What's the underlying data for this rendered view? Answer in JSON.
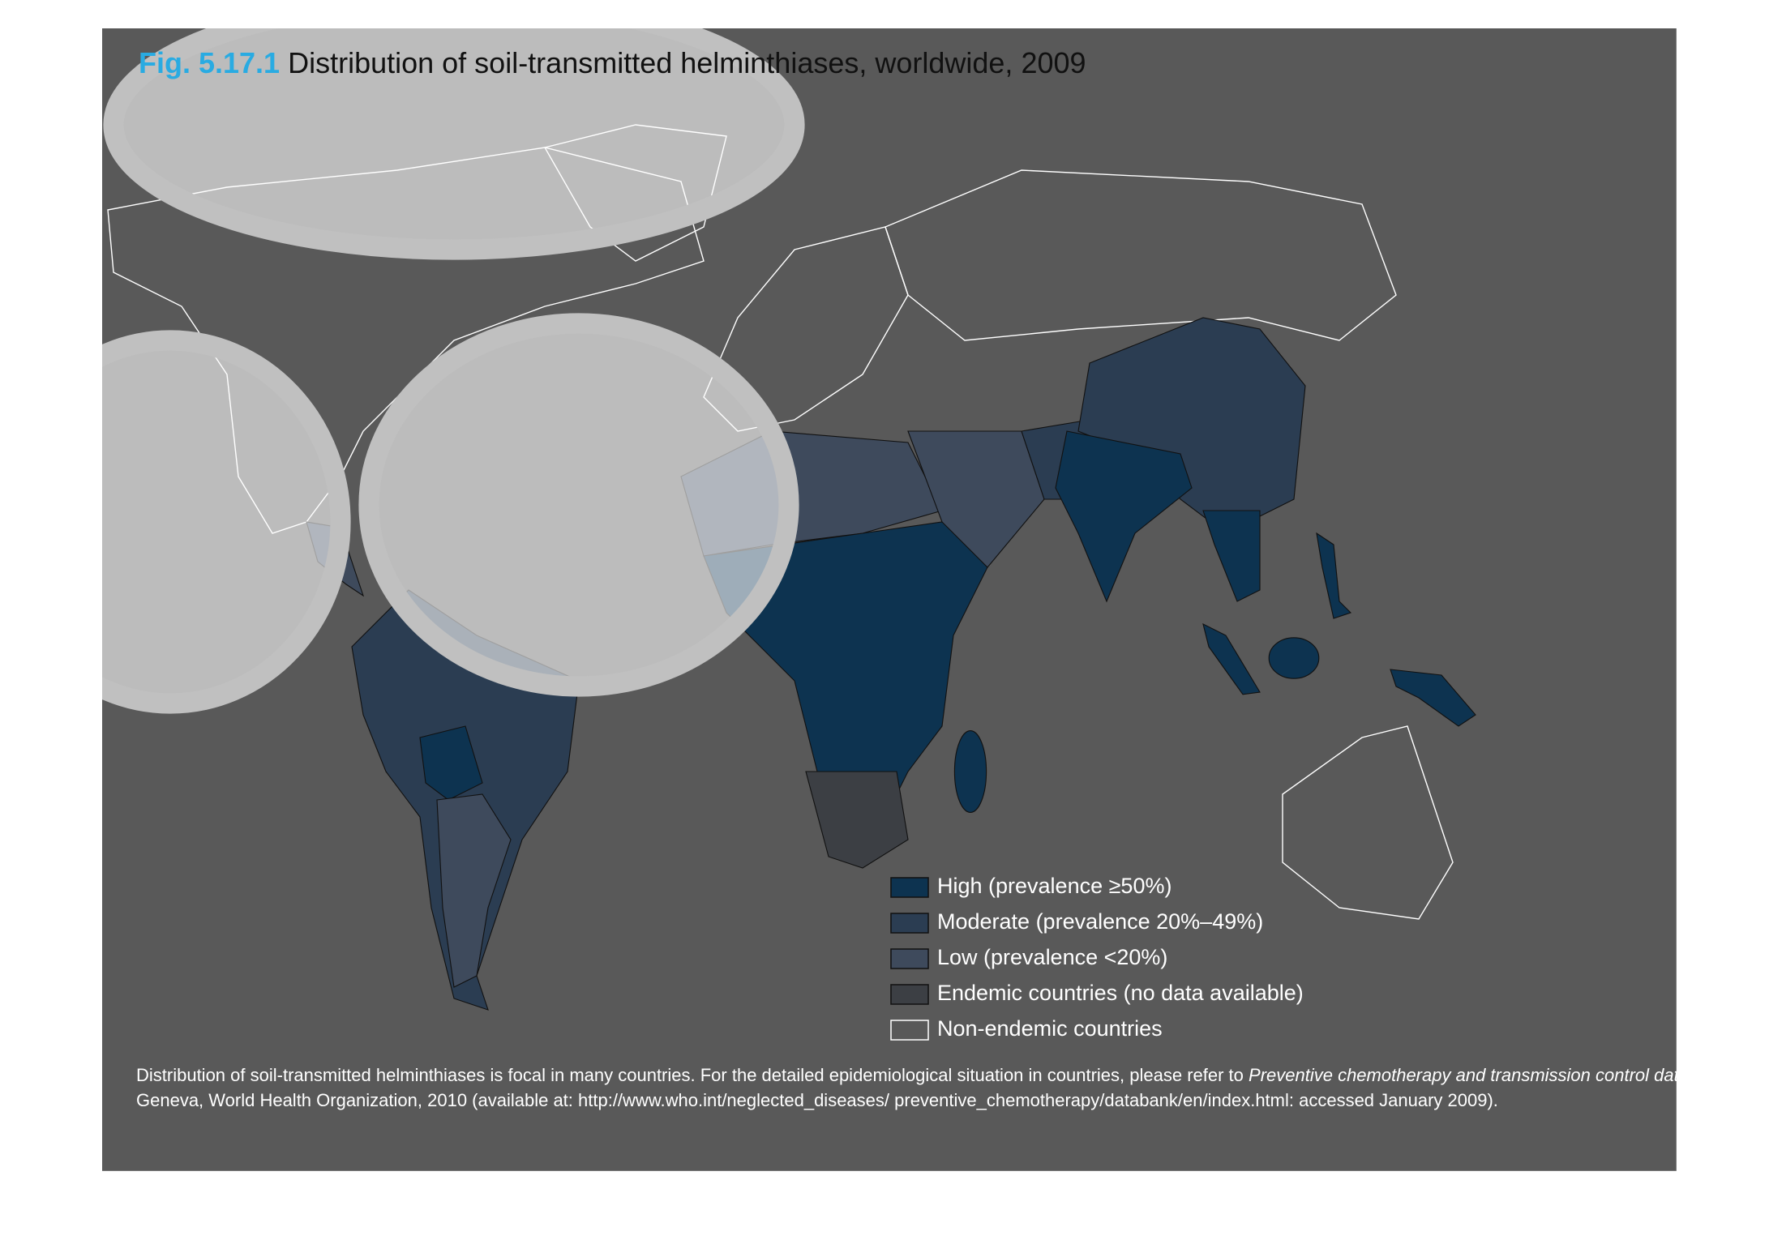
{
  "title": {
    "figure": "Fig. 5.17.1",
    "text": "Distribution of soil-transmitted helminthiases, worldwide, 2009"
  },
  "legend": [
    {
      "label": "High (prevalence ≥50%)",
      "color": "#0d3350"
    },
    {
      "label": "Moderate (prevalence 20%–49%)",
      "color": "#2b3d52"
    },
    {
      "label": "Low (prevalence <20%)",
      "color": "#3e4a5c"
    },
    {
      "label": "Endemic countries (no data available)",
      "color": "#3c3f44"
    },
    {
      "label": "Non-endemic countries",
      "color": "#595959"
    }
  ],
  "caption": {
    "line1": "Distribution of soil-transmitted helminthiases is focal in many countries. For the detailed epidemiological situation in countries, please refer to ",
    "italic": "Preventive chemotherapy and transmission control databank.",
    "line2": "Geneva, World Health Organization, 2010 (available at: http://www.who.int/neglected_diseases/ preventive_chemotherapy/databank/en/index.html: accessed January 2009)."
  }
}
